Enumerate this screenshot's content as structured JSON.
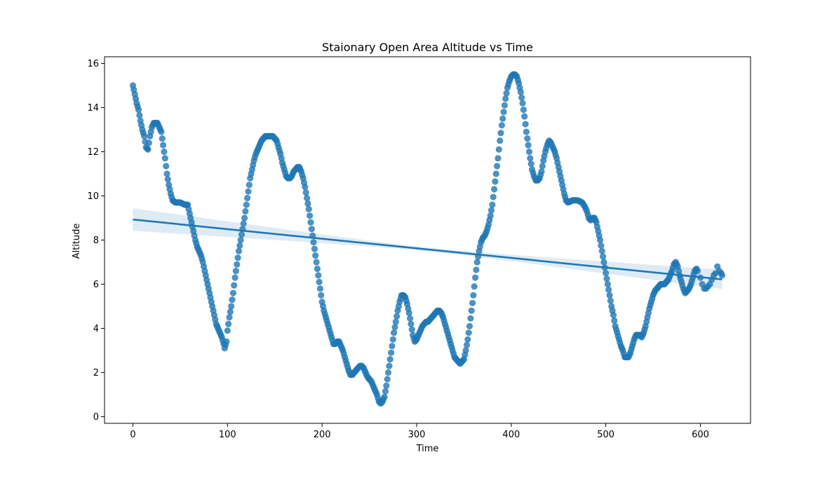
{
  "chart_data": {
    "type": "scatter",
    "title": "Staionary Open Area Altitude vs Time",
    "xlabel": "Time",
    "ylabel": "Altitude",
    "xlim": [
      -30,
      653
    ],
    "ylim": [
      -0.3,
      16.3
    ],
    "xticks": [
      0,
      100,
      200,
      300,
      400,
      500,
      600
    ],
    "yticks": [
      0,
      2,
      4,
      6,
      8,
      10,
      12,
      14,
      16
    ],
    "grid": false,
    "legend": "none",
    "colors": {
      "points": "#1f77b4",
      "line": "#1f77b4",
      "band": "#1f77b4"
    },
    "points_outline": [
      [
        0,
        15.0
      ],
      [
        2,
        14.6
      ],
      [
        4,
        14.2
      ],
      [
        6,
        13.9
      ],
      [
        8,
        13.4
      ],
      [
        10,
        13.0
      ],
      [
        12,
        12.7
      ],
      [
        14,
        12.2
      ],
      [
        16,
        12.1
      ],
      [
        18,
        12.7
      ],
      [
        20,
        13.1
      ],
      [
        22,
        13.3
      ],
      [
        24,
        13.3
      ],
      [
        26,
        13.3
      ],
      [
        28,
        13.1
      ],
      [
        30,
        12.9
      ],
      [
        32,
        12.3
      ],
      [
        34,
        11.7
      ],
      [
        36,
        11.0
      ],
      [
        38,
        10.5
      ],
      [
        40,
        10.1
      ],
      [
        42,
        9.8
      ],
      [
        45,
        9.7
      ],
      [
        50,
        9.7
      ],
      [
        55,
        9.6
      ],
      [
        58,
        9.6
      ],
      [
        60,
        9.2
      ],
      [
        62,
        8.8
      ],
      [
        64,
        8.4
      ],
      [
        66,
        8.0
      ],
      [
        68,
        7.7
      ],
      [
        70,
        7.5
      ],
      [
        72,
        7.3
      ],
      [
        74,
        7.0
      ],
      [
        76,
        6.6
      ],
      [
        78,
        6.2
      ],
      [
        80,
        5.8
      ],
      [
        82,
        5.4
      ],
      [
        84,
        5.0
      ],
      [
        86,
        4.6
      ],
      [
        88,
        4.2
      ],
      [
        90,
        4.0
      ],
      [
        92,
        3.8
      ],
      [
        94,
        3.6
      ],
      [
        96,
        3.3
      ],
      [
        97,
        3.1
      ],
      [
        99,
        3.4
      ],
      [
        100,
        3.9
      ],
      [
        102,
        4.5
      ],
      [
        104,
        5.0
      ],
      [
        106,
        5.6
      ],
      [
        108,
        6.3
      ],
      [
        110,
        6.9
      ],
      [
        112,
        7.5
      ],
      [
        114,
        8.0
      ],
      [
        116,
        8.5
      ],
      [
        118,
        9.0
      ],
      [
        120,
        9.6
      ],
      [
        122,
        10.2
      ],
      [
        124,
        10.8
      ],
      [
        126,
        11.2
      ],
      [
        128,
        11.6
      ],
      [
        130,
        11.9
      ],
      [
        132,
        12.1
      ],
      [
        134,
        12.3
      ],
      [
        136,
        12.5
      ],
      [
        138,
        12.6
      ],
      [
        140,
        12.7
      ],
      [
        142,
        12.7
      ],
      [
        144,
        12.7
      ],
      [
        146,
        12.7
      ],
      [
        148,
        12.7
      ],
      [
        150,
        12.6
      ],
      [
        152,
        12.5
      ],
      [
        154,
        12.2
      ],
      [
        156,
        11.9
      ],
      [
        158,
        11.5
      ],
      [
        160,
        11.2
      ],
      [
        162,
        10.9
      ],
      [
        164,
        10.8
      ],
      [
        166,
        10.8
      ],
      [
        168,
        10.9
      ],
      [
        170,
        11.1
      ],
      [
        172,
        11.2
      ],
      [
        174,
        11.3
      ],
      [
        176,
        11.3
      ],
      [
        178,
        11.1
      ],
      [
        180,
        10.8
      ],
      [
        182,
        10.4
      ],
      [
        184,
        9.9
      ],
      [
        186,
        9.4
      ],
      [
        188,
        8.8
      ],
      [
        190,
        8.2
      ],
      [
        192,
        7.6
      ],
      [
        194,
        7.0
      ],
      [
        196,
        6.4
      ],
      [
        198,
        5.8
      ],
      [
        200,
        5.2
      ],
      [
        202,
        4.8
      ],
      [
        204,
        4.5
      ],
      [
        206,
        4.2
      ],
      [
        208,
        3.9
      ],
      [
        210,
        3.6
      ],
      [
        212,
        3.3
      ],
      [
        214,
        3.3
      ],
      [
        216,
        3.4
      ],
      [
        218,
        3.4
      ],
      [
        220,
        3.2
      ],
      [
        222,
        3.0
      ],
      [
        224,
        2.7
      ],
      [
        226,
        2.4
      ],
      [
        228,
        2.1
      ],
      [
        230,
        1.9
      ],
      [
        232,
        1.9
      ],
      [
        234,
        2.0
      ],
      [
        236,
        2.1
      ],
      [
        238,
        2.2
      ],
      [
        240,
        2.3
      ],
      [
        242,
        2.3
      ],
      [
        244,
        2.2
      ],
      [
        246,
        2.0
      ],
      [
        248,
        1.8
      ],
      [
        250,
        1.7
      ],
      [
        252,
        1.6
      ],
      [
        254,
        1.4
      ],
      [
        256,
        1.2
      ],
      [
        258,
        1.0
      ],
      [
        260,
        0.7
      ],
      [
        262,
        0.6
      ],
      [
        264,
        0.7
      ],
      [
        266,
        0.9
      ],
      [
        268,
        1.4
      ],
      [
        270,
        2.0
      ],
      [
        272,
        2.6
      ],
      [
        274,
        3.2
      ],
      [
        276,
        3.8
      ],
      [
        278,
        4.3
      ],
      [
        280,
        4.8
      ],
      [
        282,
        5.2
      ],
      [
        284,
        5.5
      ],
      [
        286,
        5.5
      ],
      [
        288,
        5.4
      ],
      [
        290,
        5.1
      ],
      [
        292,
        4.7
      ],
      [
        294,
        4.2
      ],
      [
        296,
        3.7
      ],
      [
        298,
        3.4
      ],
      [
        300,
        3.5
      ],
      [
        302,
        3.7
      ],
      [
        304,
        3.9
      ],
      [
        306,
        4.1
      ],
      [
        308,
        4.2
      ],
      [
        310,
        4.3
      ],
      [
        312,
        4.3
      ],
      [
        314,
        4.4
      ],
      [
        316,
        4.5
      ],
      [
        318,
        4.6
      ],
      [
        320,
        4.7
      ],
      [
        322,
        4.8
      ],
      [
        324,
        4.8
      ],
      [
        326,
        4.7
      ],
      [
        328,
        4.5
      ],
      [
        330,
        4.2
      ],
      [
        332,
        3.9
      ],
      [
        334,
        3.6
      ],
      [
        336,
        3.3
      ],
      [
        338,
        3.0
      ],
      [
        340,
        2.7
      ],
      [
        342,
        2.6
      ],
      [
        344,
        2.5
      ],
      [
        346,
        2.4
      ],
      [
        348,
        2.5
      ],
      [
        350,
        2.6
      ],
      [
        352,
        3.0
      ],
      [
        354,
        3.5
      ],
      [
        356,
        4.1
      ],
      [
        358,
        4.8
      ],
      [
        360,
        5.5
      ],
      [
        362,
        6.3
      ],
      [
        364,
        7.0
      ],
      [
        366,
        7.5
      ],
      [
        368,
        7.9
      ],
      [
        370,
        8.1
      ],
      [
        372,
        8.2
      ],
      [
        374,
        8.4
      ],
      [
        376,
        8.7
      ],
      [
        378,
        9.1
      ],
      [
        380,
        9.6
      ],
      [
        382,
        10.3
      ],
      [
        384,
        11.0
      ],
      [
        386,
        11.7
      ],
      [
        388,
        12.5
      ],
      [
        390,
        13.2
      ],
      [
        392,
        13.8
      ],
      [
        394,
        14.4
      ],
      [
        396,
        14.9
      ],
      [
        398,
        15.2
      ],
      [
        400,
        15.4
      ],
      [
        402,
        15.5
      ],
      [
        404,
        15.5
      ],
      [
        406,
        15.4
      ],
      [
        408,
        15.1
      ],
      [
        410,
        14.7
      ],
      [
        412,
        14.2
      ],
      [
        414,
        13.6
      ],
      [
        416,
        12.9
      ],
      [
        418,
        12.3
      ],
      [
        420,
        11.7
      ],
      [
        422,
        11.2
      ],
      [
        424,
        10.9
      ],
      [
        426,
        10.7
      ],
      [
        428,
        10.7
      ],
      [
        430,
        10.8
      ],
      [
        432,
        11.1
      ],
      [
        434,
        11.6
      ],
      [
        436,
        12.0
      ],
      [
        438,
        12.3
      ],
      [
        440,
        12.5
      ],
      [
        442,
        12.4
      ],
      [
        444,
        12.2
      ],
      [
        446,
        12.0
      ],
      [
        448,
        11.7
      ],
      [
        450,
        11.3
      ],
      [
        452,
        10.9
      ],
      [
        454,
        10.5
      ],
      [
        456,
        10.1
      ],
      [
        458,
        9.8
      ],
      [
        460,
        9.7
      ],
      [
        465,
        9.8
      ],
      [
        470,
        9.8
      ],
      [
        475,
        9.7
      ],
      [
        478,
        9.5
      ],
      [
        480,
        9.3
      ],
      [
        482,
        9.0
      ],
      [
        484,
        8.9
      ],
      [
        486,
        9.0
      ],
      [
        488,
        9.0
      ],
      [
        490,
        8.8
      ],
      [
        492,
        8.4
      ],
      [
        494,
        8.0
      ],
      [
        496,
        7.5
      ],
      [
        498,
        7.0
      ],
      [
        500,
        6.5
      ],
      [
        502,
        6.0
      ],
      [
        504,
        5.5
      ],
      [
        506,
        5.0
      ],
      [
        508,
        4.6
      ],
      [
        510,
        4.1
      ],
      [
        512,
        3.8
      ],
      [
        514,
        3.5
      ],
      [
        516,
        3.2
      ],
      [
        518,
        3.0
      ],
      [
        520,
        2.7
      ],
      [
        522,
        2.7
      ],
      [
        524,
        2.7
      ],
      [
        526,
        2.9
      ],
      [
        528,
        3.2
      ],
      [
        530,
        3.5
      ],
      [
        532,
        3.7
      ],
      [
        534,
        3.7
      ],
      [
        536,
        3.7
      ],
      [
        538,
        3.6
      ],
      [
        540,
        3.8
      ],
      [
        542,
        4.1
      ],
      [
        544,
        4.5
      ],
      [
        546,
        4.9
      ],
      [
        548,
        5.2
      ],
      [
        550,
        5.5
      ],
      [
        552,
        5.7
      ],
      [
        554,
        5.8
      ],
      [
        556,
        5.9
      ],
      [
        558,
        6.0
      ],
      [
        560,
        6.0
      ],
      [
        562,
        6.0
      ],
      [
        564,
        6.1
      ],
      [
        566,
        6.2
      ],
      [
        568,
        6.4
      ],
      [
        570,
        6.6
      ],
      [
        572,
        6.9
      ],
      [
        574,
        7.0
      ],
      [
        576,
        6.8
      ],
      [
        578,
        6.4
      ],
      [
        580,
        6.1
      ],
      [
        582,
        5.8
      ],
      [
        584,
        5.6
      ],
      [
        586,
        5.7
      ],
      [
        588,
        5.8
      ],
      [
        590,
        6.0
      ],
      [
        592,
        6.3
      ],
      [
        594,
        6.6
      ],
      [
        596,
        6.7
      ],
      [
        598,
        6.5
      ]
    ],
    "regression": {
      "x_range": [
        0,
        623
      ],
      "y_start": 8.93,
      "y_end": 6.22,
      "ci_lower_start": 8.42,
      "ci_upper_start": 9.44,
      "ci_lower_mid": 7.58,
      "ci_upper_mid": 7.75,
      "ci_lower_end": 5.82,
      "ci_upper_end": 6.69
    }
  }
}
